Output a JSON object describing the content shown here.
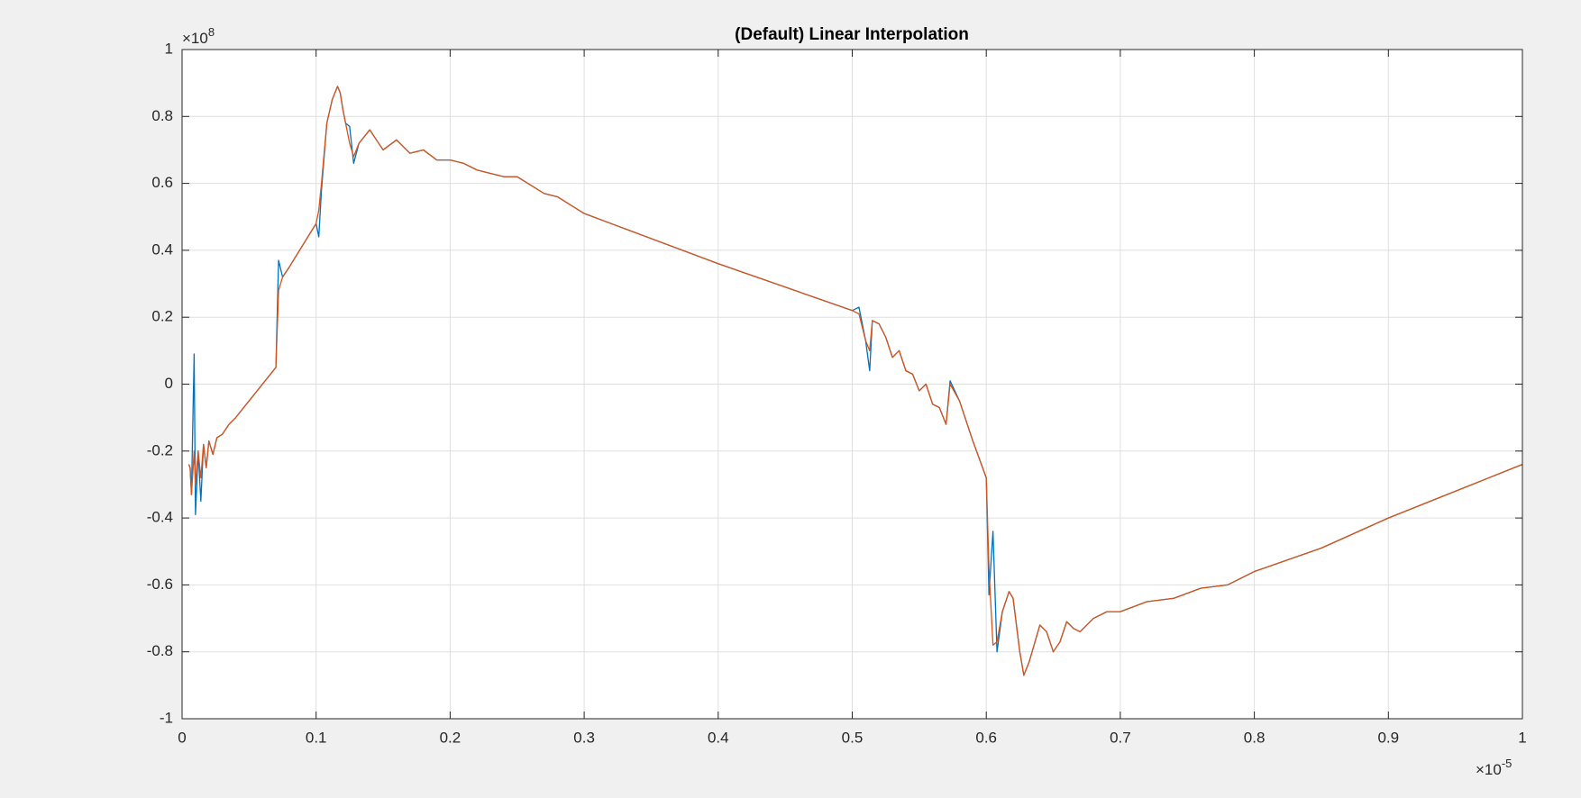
{
  "chart_data": {
    "type": "line",
    "title": "(Default) Linear Interpolation",
    "x_multiplier": "×10",
    "x_exponent": "-5",
    "y_multiplier": "×10",
    "y_exponent": "8",
    "xlim": [
      0,
      1
    ],
    "ylim": [
      -1,
      1
    ],
    "xticks": [
      0,
      0.1,
      0.2,
      0.3,
      0.4,
      0.5,
      0.6,
      0.7,
      0.8,
      0.9,
      1
    ],
    "yticks": [
      -1,
      -0.8,
      -0.6,
      -0.4,
      -0.2,
      0,
      0.2,
      0.4,
      0.6,
      0.8,
      1
    ],
    "grid": true,
    "x": [
      0.005,
      0.006,
      0.007,
      0.009,
      0.01,
      0.012,
      0.014,
      0.016,
      0.018,
      0.02,
      0.023,
      0.026,
      0.03,
      0.035,
      0.04,
      0.07,
      0.072,
      0.075,
      0.08,
      0.1,
      0.102,
      0.104,
      0.108,
      0.112,
      0.116,
      0.118,
      0.12,
      0.122,
      0.125,
      0.128,
      0.132,
      0.14,
      0.145,
      0.15,
      0.16,
      0.17,
      0.18,
      0.19,
      0.2,
      0.21,
      0.22,
      0.23,
      0.24,
      0.25,
      0.27,
      0.28,
      0.3,
      0.32,
      0.4,
      0.5,
      0.505,
      0.51,
      0.513,
      0.515,
      0.52,
      0.525,
      0.53,
      0.535,
      0.54,
      0.545,
      0.55,
      0.555,
      0.56,
      0.565,
      0.57,
      0.573,
      0.58,
      0.59,
      0.6,
      0.602,
      0.605,
      0.608,
      0.612,
      0.617,
      0.62,
      0.625,
      0.628,
      0.632,
      0.64,
      0.645,
      0.65,
      0.655,
      0.66,
      0.665,
      0.67,
      0.68,
      0.69,
      0.7,
      0.72,
      0.74,
      0.76,
      0.78,
      0.8,
      0.85,
      0.9,
      0.95,
      1.0
    ],
    "series": [
      {
        "color": "#0072bd",
        "values": [
          -0.24,
          -0.25,
          -0.33,
          0.09,
          -0.39,
          -0.2,
          -0.35,
          -0.18,
          -0.25,
          -0.17,
          -0.21,
          -0.16,
          -0.15,
          -0.12,
          -0.1,
          0.05,
          0.37,
          0.32,
          0.35,
          0.48,
          0.44,
          0.58,
          0.78,
          0.85,
          0.89,
          0.87,
          0.82,
          0.78,
          0.77,
          0.66,
          0.72,
          0.76,
          0.73,
          0.7,
          0.73,
          0.69,
          0.7,
          0.67,
          0.67,
          0.66,
          0.64,
          0.63,
          0.62,
          0.62,
          0.57,
          0.56,
          0.51,
          0.48,
          0.36,
          0.22,
          0.23,
          0.13,
          0.04,
          0.19,
          0.18,
          0.14,
          0.08,
          0.1,
          0.04,
          0.03,
          -0.02,
          0.0,
          -0.06,
          -0.07,
          -0.12,
          0.01,
          -0.05,
          -0.17,
          -0.28,
          -0.63,
          -0.44,
          -0.8,
          -0.68,
          -0.62,
          -0.64,
          -0.8,
          -0.87,
          -0.83,
          -0.72,
          -0.74,
          -0.8,
          -0.77,
          -0.71,
          -0.73,
          -0.74,
          -0.7,
          -0.68,
          -0.68,
          -0.65,
          -0.64,
          -0.61,
          -0.6,
          -0.56,
          -0.49,
          -0.4,
          -0.32,
          -0.24
        ]
      },
      {
        "color": "#d95319",
        "values": [
          -0.24,
          -0.25,
          -0.33,
          -0.2,
          -0.3,
          -0.2,
          -0.28,
          -0.18,
          -0.25,
          -0.17,
          -0.21,
          -0.16,
          -0.15,
          -0.12,
          -0.1,
          0.05,
          0.28,
          0.32,
          0.35,
          0.48,
          0.52,
          0.6,
          0.78,
          0.85,
          0.89,
          0.87,
          0.82,
          0.78,
          0.72,
          0.68,
          0.72,
          0.76,
          0.73,
          0.7,
          0.73,
          0.69,
          0.7,
          0.67,
          0.67,
          0.66,
          0.64,
          0.63,
          0.62,
          0.62,
          0.57,
          0.56,
          0.51,
          0.48,
          0.36,
          0.22,
          0.21,
          0.13,
          0.1,
          0.19,
          0.18,
          0.14,
          0.08,
          0.1,
          0.04,
          0.03,
          -0.02,
          0.0,
          -0.06,
          -0.07,
          -0.12,
          0.0,
          -0.05,
          -0.17,
          -0.28,
          -0.55,
          -0.78,
          -0.77,
          -0.68,
          -0.62,
          -0.64,
          -0.8,
          -0.87,
          -0.83,
          -0.72,
          -0.74,
          -0.8,
          -0.77,
          -0.71,
          -0.73,
          -0.74,
          -0.7,
          -0.68,
          -0.68,
          -0.65,
          -0.64,
          -0.61,
          -0.6,
          -0.56,
          -0.49,
          -0.4,
          -0.32,
          -0.24
        ]
      }
    ]
  }
}
